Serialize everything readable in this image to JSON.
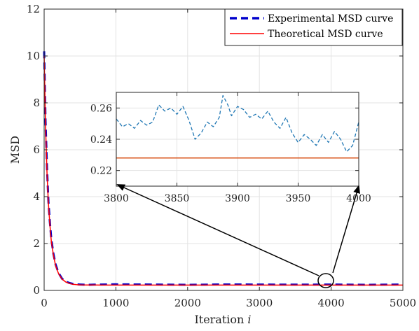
{
  "chart_data": [
    {
      "type": "line",
      "xlabel": "Iteration i",
      "xlabel_main": "Iteration",
      "xlabel_var": "i",
      "ylabel": "MSD",
      "xlim": [
        0,
        5000
      ],
      "ylim": [
        0,
        12
      ],
      "xticks": [
        "0",
        "1000",
        "2000",
        "3000",
        "4000",
        "5000"
      ],
      "yticks": [
        "0",
        "2",
        "4",
        "6",
        "8",
        "10",
        "12"
      ],
      "grid": true,
      "legend_position": "top-right",
      "series": [
        {
          "name": "Experimental MSD curve",
          "color": "#0000cc",
          "style": "dashed",
          "x": [
            0,
            20,
            40,
            60,
            80,
            100,
            130,
            160,
            200,
            250,
            300,
            350,
            400,
            450,
            500,
            600,
            700,
            800,
            1000,
            1500,
            2000,
            2500,
            3000,
            3500,
            4000,
            4500,
            5000
          ],
          "y": [
            10.2,
            7.2,
            5.2,
            3.8,
            2.9,
            2.2,
            1.55,
            1.1,
            0.75,
            0.5,
            0.38,
            0.32,
            0.28,
            0.26,
            0.25,
            0.24,
            0.245,
            0.25,
            0.26,
            0.25,
            0.24,
            0.255,
            0.25,
            0.245,
            0.25,
            0.24,
            0.25
          ]
        },
        {
          "name": "Theoretical MSD curve",
          "color": "#ff0000",
          "style": "solid",
          "x": [
            0,
            20,
            40,
            60,
            80,
            100,
            130,
            160,
            200,
            250,
            300,
            350,
            400,
            450,
            500,
            600,
            700,
            800,
            1000,
            1500,
            2000,
            2500,
            3000,
            3500,
            4000,
            4500,
            5000
          ],
          "y": [
            10.0,
            7.0,
            5.0,
            3.7,
            2.8,
            2.1,
            1.5,
            1.05,
            0.72,
            0.48,
            0.36,
            0.3,
            0.26,
            0.245,
            0.235,
            0.23,
            0.229,
            0.228,
            0.228,
            0.228,
            0.228,
            0.228,
            0.228,
            0.228,
            0.228,
            0.228,
            0.228
          ]
        }
      ]
    },
    {
      "type": "line",
      "role": "inset",
      "xlim": [
        3800,
        4000
      ],
      "ylim": [
        0.21,
        0.27
      ],
      "xticks": [
        "3800",
        "3850",
        "3900",
        "3950",
        "4000"
      ],
      "yticks": [
        "0.22",
        "0.24",
        "0.26"
      ],
      "grid": true,
      "series": [
        {
          "name": "Experimental MSD curve",
          "color": "#1f77b4",
          "style": "dashed",
          "x": [
            3800,
            3805,
            3810,
            3815,
            3820,
            3825,
            3830,
            3835,
            3840,
            3845,
            3850,
            3855,
            3860,
            3865,
            3870,
            3875,
            3880,
            3885,
            3888,
            3892,
            3895,
            3900,
            3905,
            3910,
            3915,
            3920,
            3925,
            3930,
            3935,
            3940,
            3945,
            3950,
            3955,
            3960,
            3965,
            3970,
            3975,
            3980,
            3985,
            3990,
            3995,
            4000
          ],
          "y": [
            0.253,
            0.248,
            0.25,
            0.247,
            0.252,
            0.249,
            0.251,
            0.262,
            0.258,
            0.26,
            0.256,
            0.261,
            0.252,
            0.24,
            0.244,
            0.251,
            0.248,
            0.254,
            0.268,
            0.262,
            0.255,
            0.261,
            0.259,
            0.254,
            0.256,
            0.253,
            0.258,
            0.251,
            0.247,
            0.254,
            0.244,
            0.238,
            0.243,
            0.24,
            0.236,
            0.243,
            0.238,
            0.245,
            0.24,
            0.232,
            0.236,
            0.251
          ]
        },
        {
          "name": "Theoretical MSD curve",
          "color": "#d95319",
          "style": "solid",
          "x": [
            3800,
            4000
          ],
          "y": [
            0.228,
            0.228
          ]
        }
      ]
    }
  ]
}
